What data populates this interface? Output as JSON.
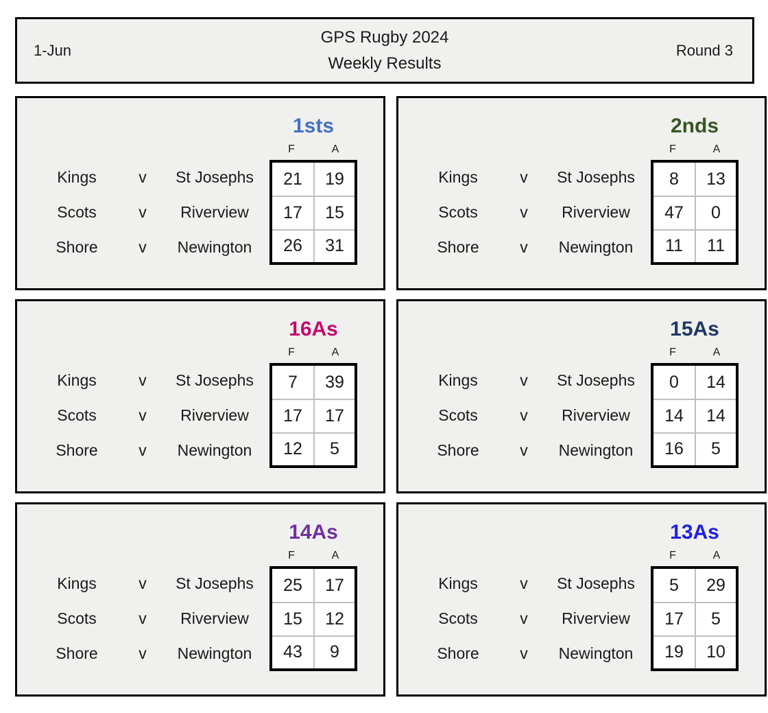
{
  "header": {
    "date": "1-Jun",
    "title_line1": "GPS Rugby 2024",
    "title_line2": "Weekly Results",
    "round": "Round 3"
  },
  "score_header": {
    "for_label": "F",
    "against_label": "A"
  },
  "panels": [
    {
      "grade": "1sts",
      "color": "#4472C4",
      "matches": [
        {
          "home": "Kings",
          "versus": "v",
          "away": "St Josephs",
          "for": "21",
          "against": "19"
        },
        {
          "home": "Scots",
          "versus": "v",
          "away": "Riverview",
          "for": "17",
          "against": "15"
        },
        {
          "home": "Shore",
          "versus": "v",
          "away": "Newington",
          "for": "26",
          "against": "31"
        }
      ]
    },
    {
      "grade": "2nds",
      "color": "#375623",
      "matches": [
        {
          "home": "Kings",
          "versus": "v",
          "away": "St Josephs",
          "for": "8",
          "against": "13"
        },
        {
          "home": "Scots",
          "versus": "v",
          "away": "Riverview",
          "for": "47",
          "against": "0"
        },
        {
          "home": "Shore",
          "versus": "v",
          "away": "Newington",
          "for": "11",
          "against": "11"
        }
      ]
    },
    {
      "grade": "16As",
      "color": "#C40A6E",
      "matches": [
        {
          "home": "Kings",
          "versus": "v",
          "away": "St Josephs",
          "for": "7",
          "against": "39"
        },
        {
          "home": "Scots",
          "versus": "v",
          "away": "Riverview",
          "for": "17",
          "against": "17"
        },
        {
          "home": "Shore",
          "versus": "v",
          "away": "Newington",
          "for": "12",
          "against": "5"
        }
      ]
    },
    {
      "grade": "15As",
      "color": "#1F3864",
      "matches": [
        {
          "home": "Kings",
          "versus": "v",
          "away": "St Josephs",
          "for": "0",
          "against": "14"
        },
        {
          "home": "Scots",
          "versus": "v",
          "away": "Riverview",
          "for": "14",
          "against": "14"
        },
        {
          "home": "Shore",
          "versus": "v",
          "away": "Newington",
          "for": "16",
          "against": "5"
        }
      ]
    },
    {
      "grade": "14As",
      "color": "#7030A0",
      "matches": [
        {
          "home": "Kings",
          "versus": "v",
          "away": "St Josephs",
          "for": "25",
          "against": "17"
        },
        {
          "home": "Scots",
          "versus": "v",
          "away": "Riverview",
          "for": "15",
          "against": "12"
        },
        {
          "home": "Shore",
          "versus": "v",
          "away": "Newington",
          "for": "43",
          "against": "9"
        }
      ]
    },
    {
      "grade": "13As",
      "color": "#2020E0",
      "matches": [
        {
          "home": "Kings",
          "versus": "v",
          "away": "St Josephs",
          "for": "5",
          "against": "29"
        },
        {
          "home": "Scots",
          "versus": "v",
          "away": "Riverview",
          "for": "17",
          "against": "5"
        },
        {
          "home": "Shore",
          "versus": "v",
          "away": "Newington",
          "for": "19",
          "against": "10"
        }
      ]
    }
  ]
}
